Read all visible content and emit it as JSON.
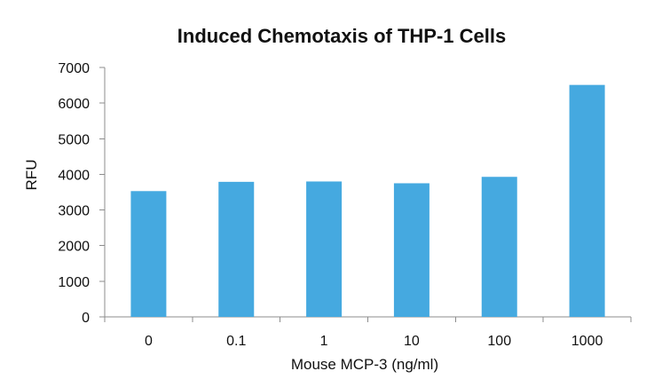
{
  "chart_data": {
    "type": "bar",
    "title": "Induced Chemotaxis of THP-1 Cells",
    "xlabel": "Mouse MCP-3 (ng/ml)",
    "ylabel": "RFU",
    "categories": [
      "0",
      "0.1",
      "1",
      "10",
      "100",
      "1000"
    ],
    "values": [
      3530,
      3790,
      3800,
      3750,
      3930,
      6510
    ],
    "ylim": [
      0,
      7000
    ],
    "yticks": [
      0,
      1000,
      2000,
      3000,
      4000,
      5000,
      6000,
      7000
    ],
    "grid": false,
    "legend": "none",
    "bar_color": "#45a9e0"
  }
}
